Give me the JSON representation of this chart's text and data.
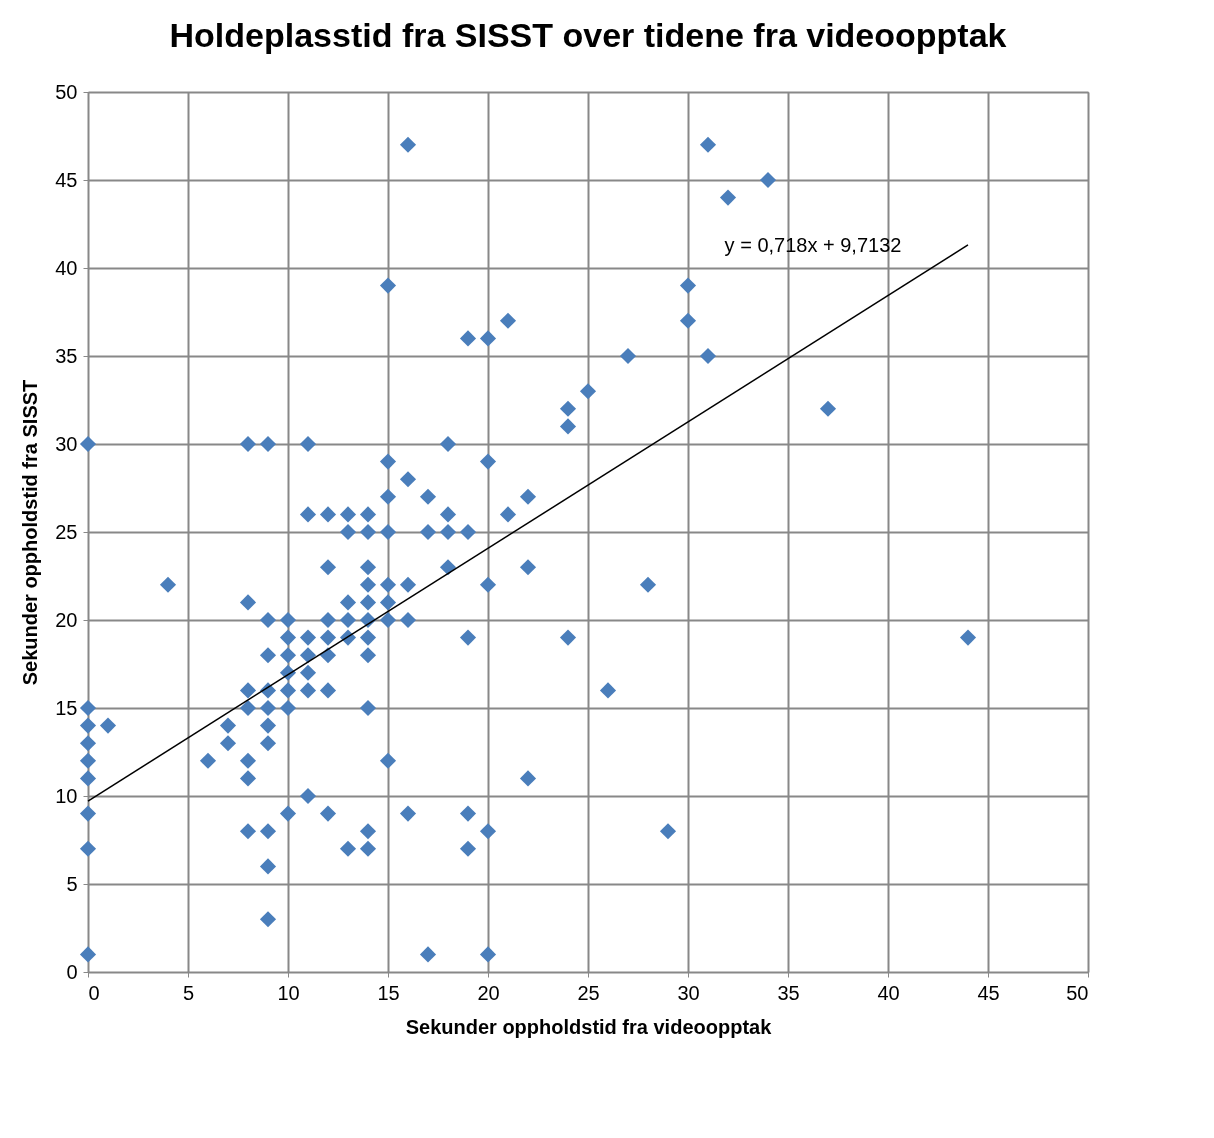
{
  "chart_data": {
    "type": "scatter",
    "title": "Holdeplasstid fra SISST over tidene fra videoopptak",
    "xlabel": "Sekunder oppholdstid fra videoopptak",
    "ylabel": "Sekunder oppholdstid fra SISST",
    "xlim": [
      0,
      50
    ],
    "ylim": [
      0,
      50
    ],
    "xticks": [
      0,
      5,
      10,
      15,
      20,
      25,
      30,
      35,
      40,
      45,
      50
    ],
    "yticks": [
      0,
      5,
      10,
      15,
      20,
      25,
      30,
      35,
      40,
      45,
      50
    ],
    "grid": true,
    "series": [
      {
        "marker": "diamond",
        "color": "#4a7ebb",
        "x": [
          0,
          0,
          0,
          0,
          0,
          0,
          0,
          0,
          0,
          1,
          4,
          6,
          7,
          7,
          8,
          8,
          8,
          8,
          8,
          8,
          8,
          9,
          9,
          9,
          9,
          9,
          9,
          9,
          9,
          9,
          9,
          10,
          10,
          10,
          10,
          10,
          10,
          10,
          11,
          11,
          11,
          11,
          11,
          11,
          11,
          12,
          12,
          12,
          12,
          12,
          12,
          12,
          13,
          13,
          13,
          13,
          13,
          13,
          14,
          14,
          14,
          14,
          14,
          14,
          14,
          14,
          14,
          14,
          14,
          15,
          15,
          15,
          15,
          15,
          15,
          15,
          15,
          16,
          16,
          16,
          16,
          16,
          17,
          17,
          17,
          18,
          18,
          18,
          18,
          19,
          19,
          19,
          19,
          19,
          20,
          20,
          20,
          20,
          20,
          21,
          21,
          22,
          22,
          22,
          24,
          24,
          24,
          25,
          26,
          27,
          28,
          29,
          30,
          30,
          31,
          31,
          32,
          34,
          37,
          44
        ],
        "values": [
          30,
          15,
          14,
          13,
          12,
          11,
          9,
          7,
          1,
          14,
          22,
          12,
          14,
          13,
          30,
          21,
          16,
          15,
          12,
          11,
          8,
          30,
          20,
          18,
          16,
          15,
          14,
          13,
          8,
          6,
          3,
          20,
          19,
          18,
          17,
          16,
          15,
          9,
          30,
          26,
          19,
          18,
          17,
          16,
          10,
          26,
          23,
          20,
          19,
          18,
          16,
          9,
          26,
          25,
          21,
          20,
          19,
          7,
          26,
          25,
          23,
          22,
          21,
          20,
          19,
          18,
          15,
          8,
          7,
          39,
          29,
          27,
          25,
          22,
          21,
          20,
          12,
          47,
          28,
          22,
          20,
          9,
          27,
          25,
          1,
          30,
          26,
          25,
          23,
          36,
          25,
          19,
          9,
          7,
          36,
          29,
          22,
          8,
          1,
          37,
          26,
          27,
          23,
          11,
          32,
          31,
          19,
          33,
          16,
          35,
          22,
          8,
          39,
          37,
          47,
          35,
          44,
          45,
          32,
          19
        ]
      },
      {
        "type": "line",
        "color": "#000000",
        "x": [
          0,
          44
        ],
        "values": [
          9.71,
          41.31
        ]
      }
    ],
    "annotations": [
      "y = 0,718x + 9,7132"
    ]
  }
}
